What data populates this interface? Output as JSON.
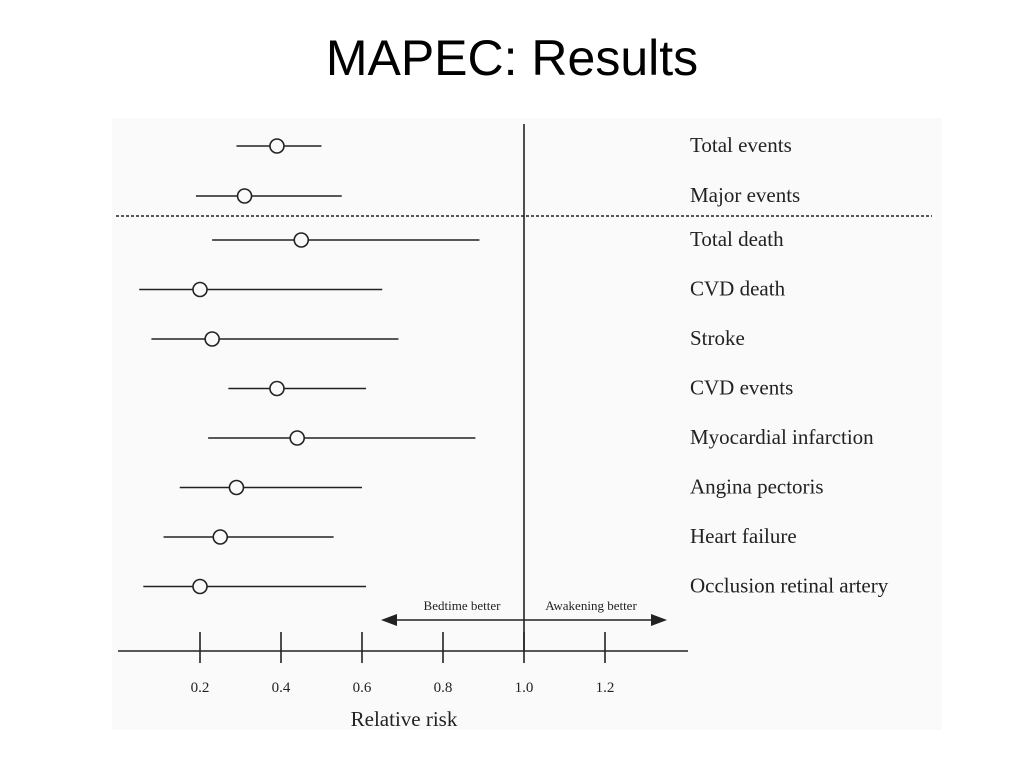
{
  "slide": {
    "title": "MAPEC: Results"
  },
  "chart_data": {
    "type": "forest",
    "title": "",
    "xlabel": "Relative risk",
    "ylabel": "",
    "xlim": [
      0,
      1.4
    ],
    "xticks": [
      0.2,
      0.4,
      0.6,
      0.8,
      1.0,
      1.2
    ],
    "xtick_labels": [
      "0.2",
      "0.4",
      "0.6",
      "0.8",
      "1.0",
      "1.2"
    ],
    "reference_line": 1.0,
    "grid": false,
    "direction_labels": {
      "left": "Bedtime better",
      "right": "Awakening better"
    },
    "separator_after_row": 1,
    "rows": [
      {
        "label": "Total events",
        "estimate": 0.39,
        "lower": 0.29,
        "upper": 0.5
      },
      {
        "label": "Major events",
        "estimate": 0.31,
        "lower": 0.19,
        "upper": 0.55
      },
      {
        "label": "Total death",
        "estimate": 0.45,
        "lower": 0.23,
        "upper": 0.89
      },
      {
        "label": "CVD death",
        "estimate": 0.2,
        "lower": 0.05,
        "upper": 0.65
      },
      {
        "label": "Stroke",
        "estimate": 0.23,
        "lower": 0.08,
        "upper": 0.69
      },
      {
        "label": "CVD events",
        "estimate": 0.39,
        "lower": 0.27,
        "upper": 0.61
      },
      {
        "label": "Myocardial infarction",
        "estimate": 0.44,
        "lower": 0.22,
        "upper": 0.88
      },
      {
        "label": "Angina pectoris",
        "estimate": 0.29,
        "lower": 0.15,
        "upper": 0.6
      },
      {
        "label": "Heart failure",
        "estimate": 0.25,
        "lower": 0.11,
        "upper": 0.53
      },
      {
        "label": "Occlusion retinal artery",
        "estimate": 0.2,
        "lower": 0.06,
        "upper": 0.61
      }
    ]
  }
}
